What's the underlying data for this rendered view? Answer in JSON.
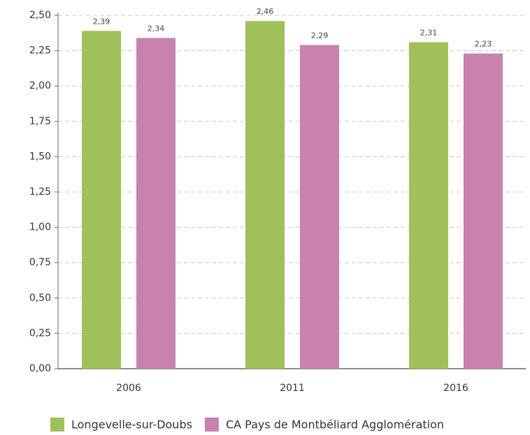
{
  "chart_data": {
    "type": "bar",
    "categories": [
      "2006",
      "2011",
      "2016"
    ],
    "series": [
      {
        "name": "Longevelle-sur-Doubs",
        "color": "#a0c15a",
        "values": [
          2.39,
          2.46,
          2.31
        ],
        "value_labels": [
          "2,39",
          "2,46",
          "2,31"
        ]
      },
      {
        "name": "CA Pays de Montbéliard Agglomération",
        "color": "#c882ad",
        "values": [
          2.34,
          2.29,
          2.23
        ],
        "value_labels": [
          "2,34",
          "2,29",
          "2,23"
        ]
      }
    ],
    "ylim": [
      0,
      2.5
    ],
    "yticks": [
      {
        "value": 0,
        "label": "0,00"
      },
      {
        "value": 0.25,
        "label": "0,25"
      },
      {
        "value": 0.5,
        "label": "0,50"
      },
      {
        "value": 0.75,
        "label": "0,75"
      },
      {
        "value": 1,
        "label": "1,00"
      },
      {
        "value": 1.25,
        "label": "1,25"
      },
      {
        "value": 1.5,
        "label": "1,50"
      },
      {
        "value": 1.75,
        "label": "1,75"
      },
      {
        "value": 2,
        "label": "2,00"
      },
      {
        "value": 2.25,
        "label": "2,25"
      },
      {
        "value": 2.5,
        "label": "2,50"
      }
    ],
    "grid": true,
    "legend": "bottom"
  }
}
